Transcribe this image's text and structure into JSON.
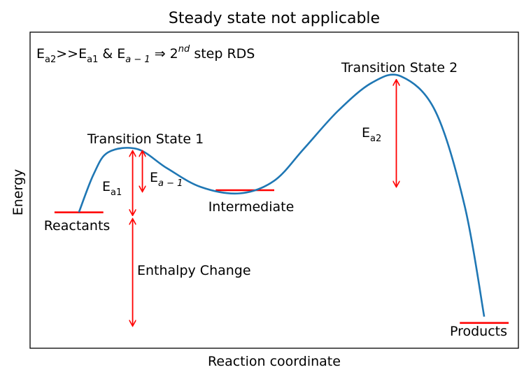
{
  "chart_data": {
    "type": "line",
    "title": "Steady state not applicable",
    "xlabel": "Reaction coordinate",
    "ylabel": "Energy",
    "ticks_shown": false,
    "xlim": [
      0,
      10
    ],
    "ylim": [
      0,
      10
    ],
    "colors": {
      "curve": "#1f77b4",
      "markers": "#ff0000",
      "frame": "#000000"
    },
    "curve": {
      "name": "Energy profile",
      "x": [
        1.0,
        1.3,
        1.6,
        2.2,
        2.8,
        3.5,
        4.3,
        5.0,
        5.6,
        6.3,
        7.0,
        7.6,
        8.3,
        8.9,
        9.3
      ],
      "y": [
        4.3,
        5.5,
        6.2,
        6.3,
        5.7,
        5.1,
        4.9,
        5.3,
        6.3,
        7.5,
        8.4,
        8.6,
        7.5,
        4.5,
        1.0
      ]
    },
    "levels": [
      {
        "name": "Reactants",
        "label": "Reactants",
        "x_start": 0.5,
        "x_end": 1.5,
        "y": 4.3
      },
      {
        "name": "Intermediate",
        "label": "Intermediate",
        "x_start": 3.8,
        "x_end": 5.0,
        "y": 5.0
      },
      {
        "name": "Products",
        "label": "Products",
        "x_start": 8.8,
        "x_end": 9.8,
        "y": 0.8
      }
    ],
    "arrows": [
      {
        "name": "Ea1",
        "x": 2.1,
        "y_from": 4.2,
        "y_to": 6.25
      },
      {
        "name": "Ea-1",
        "x": 2.3,
        "y_from": 4.95,
        "y_to": 6.25
      },
      {
        "name": "Enthalpy",
        "x": 2.1,
        "y_from": 4.1,
        "y_to": 0.7
      },
      {
        "name": "Ea2",
        "x": 7.5,
        "y_from": 5.1,
        "y_to": 8.5
      }
    ],
    "labels": {
      "ts1": "Transition State 1",
      "ts2": "Transition State 2",
      "ea1_main": "E",
      "ea1_sub": "a1",
      "ea_minus1_main": "E",
      "ea_minus1_sub": "a − 1",
      "ea2_main": "E",
      "ea2_sub": "a2",
      "enthalpy": "Enthalpy Change",
      "rds": {
        "p1": "E",
        "p1_sub": "a2",
        "p2": ">>E",
        "p2_sub": "a1",
        "p3": " & E",
        "p3_sub": "a − 1",
        "p4": " ⇒ 2",
        "p4_sup": "nd",
        "p5": " step RDS"
      }
    }
  }
}
